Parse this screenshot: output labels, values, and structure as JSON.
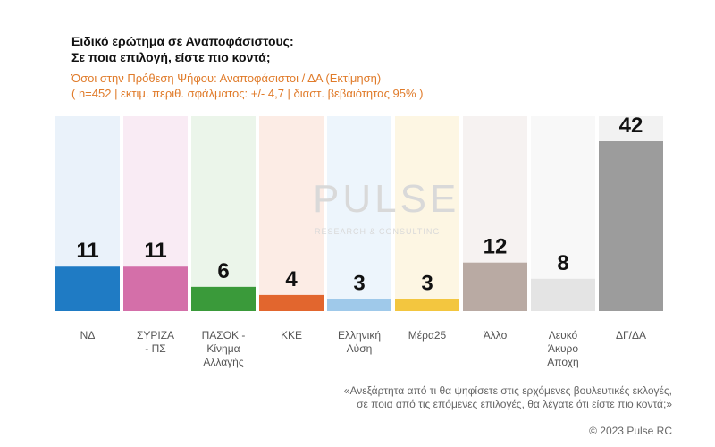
{
  "chart_data": {
    "type": "bar",
    "title": [
      "Ειδικό ερώτημα σε Αναποφάσιστους:",
      "Σε ποια επιλογή, είστε πιο κοντά;"
    ],
    "subtitle": [
      "Όσοι στην Πρόθεση Ψήφου: Αναποφάσιστοι / ΔΑ   (Εκτίμηση)",
      "( n=452  |  εκτιμ. περιθ. σφάλματος: +/- 4,7  |  διαστ. βεβαιότητας 95% )"
    ],
    "categories": [
      "ΝΔ",
      "ΣΥΡΙΖΑ\n- ΠΣ",
      "ΠΑΣΟΚ -\nΚίνημα\nΑλλαγής",
      "ΚΚΕ",
      "Ελληνική\nΛύση",
      "Μέρα25",
      "Άλλο",
      "Λευκό\nΆκυρο\nΑποχή",
      "ΔΓ/ΔΑ"
    ],
    "values": [
      11,
      11,
      6,
      4,
      3,
      3,
      12,
      8,
      42
    ],
    "colors": [
      "#1f7bc4",
      "#d46fa9",
      "#3a9a3a",
      "#e2662e",
      "#9fc9ea",
      "#f3c63f",
      "#b9aaa3",
      "#e4e4e4",
      "#9c9c9c"
    ],
    "background_colors": [
      "#eaf2fa",
      "#f9ebf4",
      "#ebf5ea",
      "#fcece5",
      "#edf5fc",
      "#fdf6e3",
      "#f6f2f1",
      "#f8f8f8",
      "#f2f2f2"
    ],
    "footnote": [
      "«Ανεξάρτητα από τι θα ψηφίσετε στις ερχόμενες βουλευτικές εκλογές,",
      "σε ποια από τις επόμενες επιλογές, θα λέγατε ότι είστε πιο κοντά;»"
    ],
    "copyright": "© 2023 Pulse RC",
    "watermark": [
      "PULSE",
      "RESEARCH & CONSULTING"
    ]
  }
}
